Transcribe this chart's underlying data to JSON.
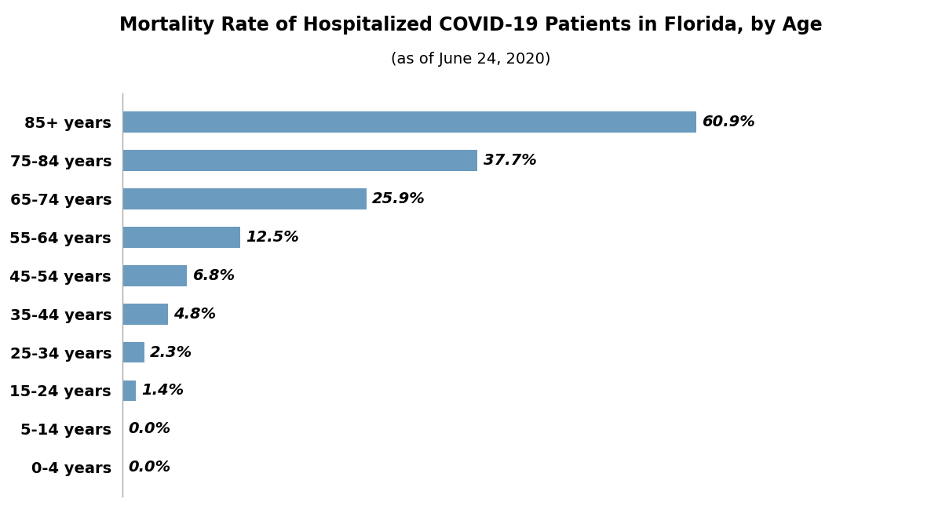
{
  "title": "Mortality Rate of Hospitalized COVID-19 Patients in Florida, by Age",
  "subtitle": "(as of June 24, 2020)",
  "categories": [
    "85+ years",
    "75-84 years",
    "65-74 years",
    "55-64 years",
    "45-54 years",
    "35-44 years",
    "25-34 years",
    "15-24 years",
    "5-14 years",
    "0-4 years"
  ],
  "values": [
    60.9,
    37.7,
    25.9,
    12.5,
    6.8,
    4.8,
    2.3,
    1.4,
    0.0,
    0.0
  ],
  "labels": [
    "60.9%",
    "37.7%",
    "25.9%",
    "12.5%",
    "6.8%",
    "4.8%",
    "2.3%",
    "1.4%",
    "0.0%",
    "0.0%"
  ],
  "bar_color": "#6B9BBF",
  "background_color": "#FFFFFF",
  "title_fontsize": 17,
  "subtitle_fontsize": 14,
  "tick_fontsize": 14,
  "value_label_fontsize": 14,
  "xlim": [
    0,
    75
  ],
  "bar_height": 0.55,
  "figsize": [
    12.0,
    6.59
  ]
}
